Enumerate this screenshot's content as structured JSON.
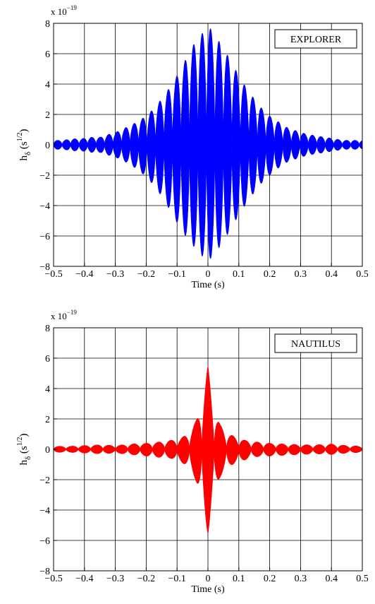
{
  "chart_data": [
    {
      "type": "line",
      "legend_label": "EXPLORER",
      "legend_position": "top-right",
      "xlabel": "Time (s)",
      "ylabel": "h_δ (s^1/2)",
      "exponent_label": "x 10^-19",
      "xlim": [
        -0.5,
        0.5
      ],
      "ylim": [
        -8,
        8
      ],
      "xticks": [
        -0.5,
        -0.4,
        -0.3,
        -0.2,
        -0.1,
        0,
        0.1,
        0.2,
        0.3,
        0.4,
        0.5
      ],
      "yticks": [
        -8,
        -6,
        -4,
        -2,
        0,
        2,
        4,
        6,
        8
      ],
      "xtick_labels": [
        "−0.5",
        "−0.4",
        "−0.3",
        "−0.2",
        "−0.1",
        "0",
        "0.1",
        "0.2",
        "0.3",
        "0.4",
        "0.5"
      ],
      "ytick_labels": [
        "−8",
        "−6",
        "−4",
        "−2",
        "0",
        "2",
        "4",
        "6",
        "8"
      ],
      "grid": true,
      "color": "#0000ff",
      "series": [
        {
          "envelope_x": [
            -0.5,
            -0.47,
            -0.44,
            -0.41,
            -0.38,
            -0.35,
            -0.32,
            -0.29,
            -0.26,
            -0.23,
            -0.2,
            -0.17,
            -0.14,
            -0.11,
            -0.08,
            -0.05,
            -0.02,
            0,
            0.02,
            0.05,
            0.08,
            0.11,
            0.14,
            0.17,
            0.2,
            0.23,
            0.26,
            0.29,
            0.32,
            0.35,
            0.38,
            0.41,
            0.44,
            0.47,
            0.5
          ],
          "envelope_upper": [
            0.3,
            0.3,
            0.4,
            0.4,
            0.5,
            0.5,
            0.7,
            0.9,
            1.2,
            1.5,
            1.9,
            2.5,
            3.3,
            4.2,
            5.3,
            6.5,
            7.3,
            7.9,
            7.3,
            6.4,
            5.3,
            4.2,
            3.3,
            2.5,
            1.9,
            1.5,
            1.1,
            0.9,
            0.7,
            0.6,
            0.5,
            0.4,
            0.3,
            0.3,
            0.3
          ],
          "envelope_lower": [
            -0.3,
            -0.3,
            -0.4,
            -0.4,
            -0.5,
            -0.5,
            -0.7,
            -0.9,
            -1.2,
            -1.6,
            -2.1,
            -2.8,
            -3.7,
            -4.8,
            -5.8,
            -6.6,
            -7.3,
            -7.7,
            -7.2,
            -6.4,
            -5.3,
            -4.3,
            -3.4,
            -2.6,
            -2.0,
            -1.5,
            -1.1,
            -0.9,
            -0.7,
            -0.6,
            -0.5,
            -0.4,
            -0.3,
            -0.3,
            -0.3
          ],
          "lobe_period": 0.0275
        }
      ]
    },
    {
      "type": "line",
      "legend_label": "NAUTILUS",
      "legend_position": "top-right",
      "xlabel": "Time (s)",
      "ylabel": "h_δ (s^1/2)",
      "exponent_label": "x 10^-19",
      "xlim": [
        -0.5,
        0.5
      ],
      "ylim": [
        -8,
        8
      ],
      "xticks": [
        -0.5,
        -0.4,
        -0.3,
        -0.2,
        -0.1,
        0,
        0.1,
        0.2,
        0.3,
        0.4,
        0.5
      ],
      "yticks": [
        -8,
        -6,
        -4,
        -2,
        0,
        2,
        4,
        6,
        8
      ],
      "xtick_labels": [
        "−0.5",
        "−0.4",
        "−0.3",
        "−0.2",
        "−0.1",
        "0",
        "0.1",
        "0.2",
        "0.3",
        "0.4",
        "0.5"
      ],
      "ytick_labels": [
        "−8",
        "−6",
        "−4",
        "−2",
        "0",
        "2",
        "4",
        "6",
        "8"
      ],
      "grid": true,
      "color": "#ff0000",
      "series": [
        {
          "envelope_x": [
            -0.5,
            -0.45,
            -0.4,
            -0.35,
            -0.3,
            -0.25,
            -0.2,
            -0.15,
            -0.12,
            -0.09,
            -0.06,
            -0.04,
            -0.02,
            -0.01,
            0,
            0.01,
            0.02,
            0.04,
            0.06,
            0.09,
            0.12,
            0.15,
            0.2,
            0.25,
            0.3,
            0.35,
            0.4,
            0.45,
            0.5
          ],
          "envelope_upper": [
            0.2,
            0.2,
            0.25,
            0.3,
            0.25,
            0.35,
            0.4,
            0.5,
            0.6,
            0.7,
            1.1,
            1.8,
            3.0,
            4.3,
            5.5,
            4.0,
            2.6,
            1.6,
            1.1,
            0.8,
            0.6,
            0.5,
            0.4,
            0.35,
            0.3,
            0.3,
            0.35,
            0.25,
            0.2
          ],
          "envelope_lower": [
            -0.2,
            -0.2,
            -0.25,
            -0.3,
            -0.25,
            -0.35,
            -0.45,
            -0.55,
            -0.6,
            -0.8,
            -1.2,
            -2.0,
            -3.3,
            -4.6,
            -5.6,
            -4.2,
            -2.8,
            -1.8,
            -1.2,
            -0.9,
            -0.7,
            -0.5,
            -0.45,
            -0.4,
            -0.35,
            -0.3,
            -0.35,
            -0.25,
            -0.2
          ],
          "lobe_period": 0.04
        }
      ]
    }
  ]
}
